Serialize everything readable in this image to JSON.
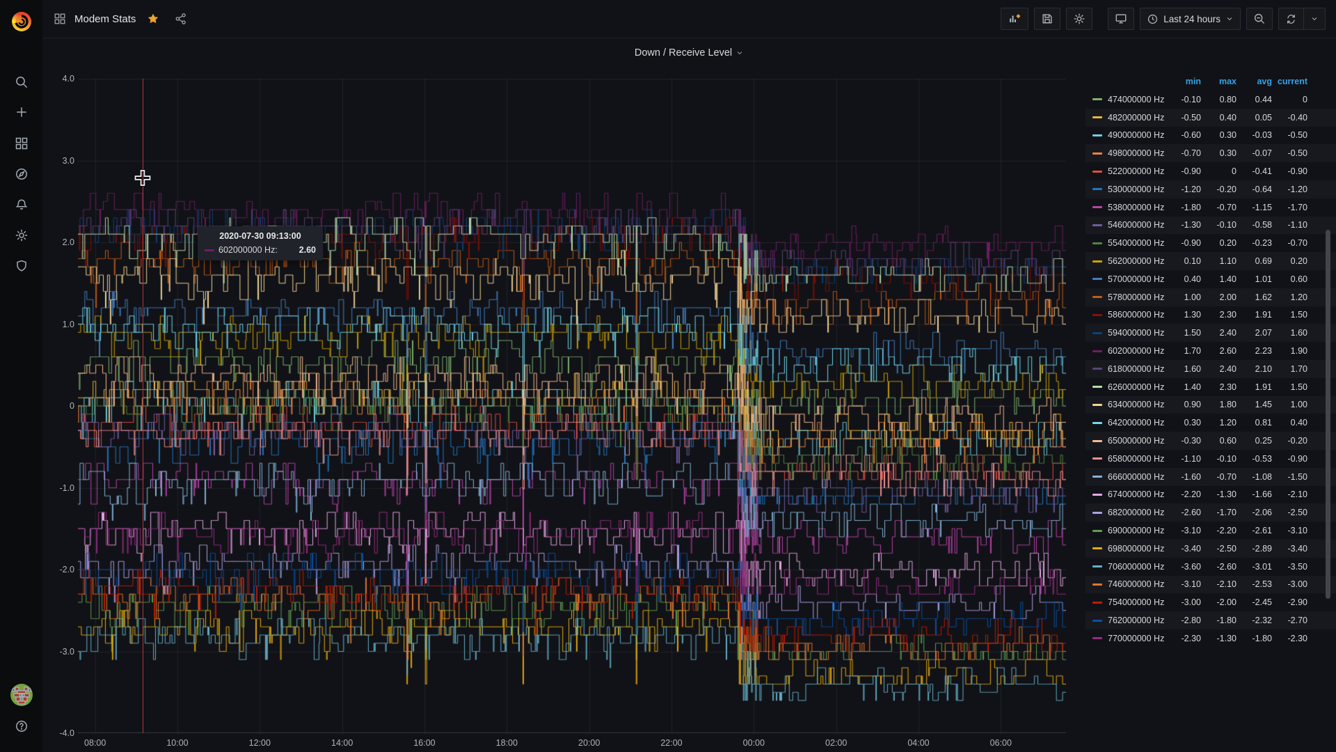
{
  "navbar": {
    "title": "Modem Stats",
    "time_range_label": "Last 24 hours"
  },
  "sidebar": {
    "icons": [
      "grafana-logo",
      "search",
      "add",
      "dashboards",
      "explore",
      "alerting",
      "configuration",
      "server-admin",
      "avatar",
      "help"
    ]
  },
  "panel": {
    "title": "Down / Receive Level"
  },
  "tooltip": {
    "timestamp": "2020-07-30 09:13:00",
    "series_label": "602000000 Hz:",
    "value": "2.60",
    "series_color": "#6D1F62"
  },
  "legend": {
    "columns": [
      "min",
      "max",
      "avg",
      "current"
    ]
  },
  "chart_data": {
    "type": "line",
    "title": "Down / Receive Level",
    "x_ticks": [
      "08:00",
      "10:00",
      "12:00",
      "14:00",
      "16:00",
      "18:00",
      "20:00",
      "22:00",
      "00:00",
      "02:00",
      "04:00",
      "06:00"
    ],
    "y_ticks": [
      "4.0",
      "3.0",
      "2.0",
      "1.0",
      "0",
      "-1.0",
      "-2.0",
      "-3.0",
      "-4.0"
    ],
    "ylim": [
      -4,
      4
    ],
    "x_start_hour": 7.5833,
    "x_span_hours": 24,
    "shift_frac": 0.67,
    "cursor_frac": 0.0655,
    "grid": true,
    "legend_position": "right-table",
    "series": [
      {
        "label": "474000000 Hz",
        "color": "#7EB26D",
        "min": "-0.10",
        "max": "0.80",
        "avg": "0.44",
        "current": "0"
      },
      {
        "label": "482000000 Hz",
        "color": "#EAB839",
        "min": "-0.50",
        "max": "0.40",
        "avg": "0.05",
        "current": "-0.40"
      },
      {
        "label": "490000000 Hz",
        "color": "#6ED0E0",
        "min": "-0.60",
        "max": "0.30",
        "avg": "-0.03",
        "current": "-0.50"
      },
      {
        "label": "498000000 Hz",
        "color": "#EF843C",
        "min": "-0.70",
        "max": "0.30",
        "avg": "-0.07",
        "current": "-0.50"
      },
      {
        "label": "522000000 Hz",
        "color": "#E24D42",
        "min": "-0.90",
        "max": "0",
        "avg": "-0.41",
        "current": "-0.90"
      },
      {
        "label": "530000000 Hz",
        "color": "#1F78C1",
        "min": "-1.20",
        "max": "-0.20",
        "avg": "-0.64",
        "current": "-1.20"
      },
      {
        "label": "538000000 Hz",
        "color": "#BA43A9",
        "min": "-1.80",
        "max": "-0.70",
        "avg": "-1.15",
        "current": "-1.70"
      },
      {
        "label": "546000000 Hz",
        "color": "#705DA0",
        "min": "-1.30",
        "max": "-0.10",
        "avg": "-0.58",
        "current": "-1.10"
      },
      {
        "label": "554000000 Hz",
        "color": "#508642",
        "min": "-0.90",
        "max": "0.20",
        "avg": "-0.23",
        "current": "-0.70"
      },
      {
        "label": "562000000 Hz",
        "color": "#CCA300",
        "min": "0.10",
        "max": "1.10",
        "avg": "0.69",
        "current": "0.20"
      },
      {
        "label": "570000000 Hz",
        "color": "#447EBC",
        "min": "0.40",
        "max": "1.40",
        "avg": "1.01",
        "current": "0.60"
      },
      {
        "label": "578000000 Hz",
        "color": "#C15C17",
        "min": "1.00",
        "max": "2.00",
        "avg": "1.62",
        "current": "1.20"
      },
      {
        "label": "586000000 Hz",
        "color": "#890F02",
        "min": "1.30",
        "max": "2.30",
        "avg": "1.91",
        "current": "1.50"
      },
      {
        "label": "594000000 Hz",
        "color": "#0A437C",
        "min": "1.50",
        "max": "2.40",
        "avg": "2.07",
        "current": "1.60"
      },
      {
        "label": "602000000 Hz",
        "color": "#6D1F62",
        "min": "1.70",
        "max": "2.60",
        "avg": "2.23",
        "current": "1.90"
      },
      {
        "label": "618000000 Hz",
        "color": "#584477",
        "min": "1.60",
        "max": "2.40",
        "avg": "2.10",
        "current": "1.70"
      },
      {
        "label": "626000000 Hz",
        "color": "#B7DBAB",
        "min": "1.40",
        "max": "2.30",
        "avg": "1.91",
        "current": "1.50"
      },
      {
        "label": "634000000 Hz",
        "color": "#F4D598",
        "min": "0.90",
        "max": "1.80",
        "avg": "1.45",
        "current": "1.00"
      },
      {
        "label": "642000000 Hz",
        "color": "#70DBED",
        "min": "0.30",
        "max": "1.20",
        "avg": "0.81",
        "current": "0.40"
      },
      {
        "label": "650000000 Hz",
        "color": "#F9BA8F",
        "min": "-0.30",
        "max": "0.60",
        "avg": "0.25",
        "current": "-0.20"
      },
      {
        "label": "658000000 Hz",
        "color": "#F29191",
        "min": "-1.10",
        "max": "-0.10",
        "avg": "-0.53",
        "current": "-0.90"
      },
      {
        "label": "666000000 Hz",
        "color": "#82B5D8",
        "min": "-1.60",
        "max": "-0.70",
        "avg": "-1.08",
        "current": "-1.50"
      },
      {
        "label": "674000000 Hz",
        "color": "#E5A8E2",
        "min": "-2.20",
        "max": "-1.30",
        "avg": "-1.66",
        "current": "-2.10"
      },
      {
        "label": "682000000 Hz",
        "color": "#AEA2E0",
        "min": "-2.60",
        "max": "-1.70",
        "avg": "-2.06",
        "current": "-2.50"
      },
      {
        "label": "690000000 Hz",
        "color": "#629E51",
        "min": "-3.10",
        "max": "-2.20",
        "avg": "-2.61",
        "current": "-3.10"
      },
      {
        "label": "698000000 Hz",
        "color": "#E5AC0E",
        "min": "-3.40",
        "max": "-2.50",
        "avg": "-2.89",
        "current": "-3.40"
      },
      {
        "label": "706000000 Hz",
        "color": "#64B0C8",
        "min": "-3.60",
        "max": "-2.60",
        "avg": "-3.01",
        "current": "-3.50"
      },
      {
        "label": "746000000 Hz",
        "color": "#E0752D",
        "min": "-3.10",
        "max": "-2.10",
        "avg": "-2.53",
        "current": "-3.00"
      },
      {
        "label": "754000000 Hz",
        "color": "#BF1B00",
        "min": "-3.00",
        "max": "-2.00",
        "avg": "-2.45",
        "current": "-2.90"
      },
      {
        "label": "762000000 Hz",
        "color": "#0A50A1",
        "min": "-2.80",
        "max": "-1.80",
        "avg": "-2.32",
        "current": "-2.70"
      },
      {
        "label": "770000000 Hz",
        "color": "#962D82",
        "min": "-2.30",
        "max": "-1.30",
        "avg": "-1.80",
        "current": "-2.30"
      }
    ]
  }
}
